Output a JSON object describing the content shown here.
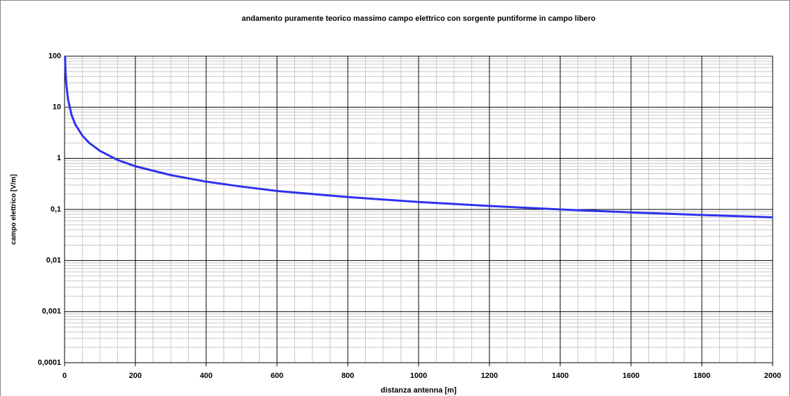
{
  "chart_data": {
    "type": "line",
    "title": "andamento puramente teorico massimo campo elettrico con sorgente puntiforme in campo libero",
    "x_label": "distanza antenna [m]",
    "y_label": "campo elettrico [V/m]",
    "x": [
      1.4,
      2,
      3,
      5,
      10,
      20,
      30,
      50,
      70,
      100,
      150,
      200,
      300,
      400,
      500,
      600,
      800,
      1000,
      1200,
      1400,
      1600,
      1800,
      2000
    ],
    "values": [
      100,
      70,
      46.7,
      28,
      14,
      7,
      4.67,
      2.8,
      2,
      1.4,
      0.93,
      0.7,
      0.47,
      0.35,
      0.28,
      0.23,
      0.175,
      0.14,
      0.117,
      0.1,
      0.0875,
      0.078,
      0.07
    ],
    "color": "#3030f0",
    "log_y": true,
    "grid": true,
    "xlim": [
      0,
      2000
    ],
    "xticks": [
      0,
      200,
      400,
      600,
      800,
      1000,
      1200,
      1400,
      1600,
      1800,
      2000
    ],
    "ylim": [
      0.0001,
      100
    ],
    "yticks": [
      {
        "value": 0.0001,
        "label": "0,0001"
      },
      {
        "value": 0.001,
        "label": "0,001"
      },
      {
        "value": 0.01,
        "label": "0,01"
      },
      {
        "value": 0.1,
        "label": "0,1"
      },
      1,
      10,
      100
    ]
  }
}
